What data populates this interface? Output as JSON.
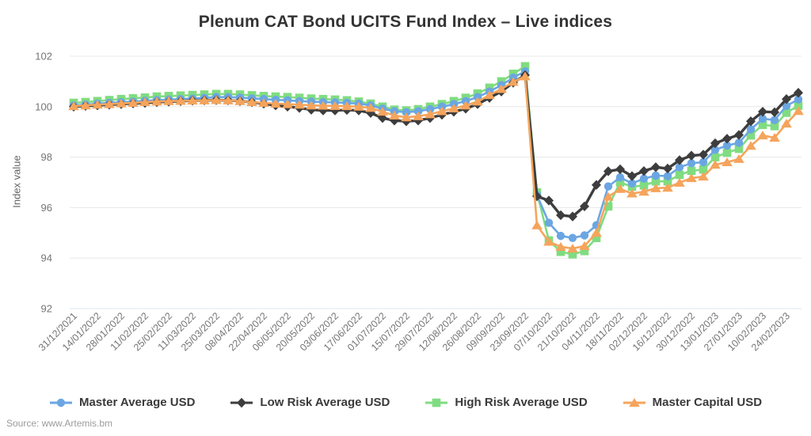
{
  "header": {
    "title": "Plenum CAT Bond UCITS Fund Index – Live indices"
  },
  "y_axis": {
    "label": "Index value"
  },
  "source": {
    "text": "Source: www.Artemis.bm"
  },
  "style": {
    "grid_color": "#e8e8e8",
    "baseline_color": "#d9e4f1",
    "tick_color": "#757575",
    "title_color": "#333333",
    "legend_text_color": "#3a3a3a"
  },
  "chart_data": {
    "type": "line",
    "title": "Plenum CAT Bond UCITS Fund Index – Live indices",
    "xlabel": "",
    "ylabel": "Index value",
    "ylim": [
      92,
      102
    ],
    "yticks": [
      102,
      100,
      98,
      96,
      94,
      92
    ],
    "grid": "horizontal",
    "legend_position": "bottom",
    "x_label_every": 2,
    "x": [
      "31/12/2021",
      "07/01/2022",
      "14/01/2022",
      "21/01/2022",
      "28/01/2022",
      "04/02/2022",
      "11/02/2022",
      "18/02/2022",
      "25/02/2022",
      "04/03/2022",
      "11/03/2022",
      "18/03/2022",
      "25/03/2022",
      "01/04/2022",
      "08/04/2022",
      "15/04/2022",
      "22/04/2022",
      "29/04/2022",
      "06/05/2022",
      "13/05/2022",
      "20/05/2022",
      "27/05/2022",
      "03/06/2022",
      "10/06/2022",
      "17/06/2022",
      "24/06/2022",
      "01/07/2022",
      "08/07/2022",
      "15/07/2022",
      "22/07/2022",
      "29/07/2022",
      "05/08/2022",
      "12/08/2022",
      "19/08/2022",
      "26/08/2022",
      "02/09/2022",
      "09/09/2022",
      "16/09/2022",
      "23/09/2022",
      "30/09/2022",
      "07/10/2022",
      "14/10/2022",
      "21/10/2022",
      "28/10/2022",
      "04/11/2022",
      "11/11/2022",
      "18/11/2022",
      "25/11/2022",
      "02/12/2022",
      "09/12/2022",
      "16/12/2022",
      "23/12/2022",
      "30/12/2022",
      "06/01/2023",
      "13/01/2023",
      "20/01/2023",
      "27/01/2023",
      "03/02/2023",
      "10/02/2023",
      "17/02/2023",
      "24/02/2023",
      "03/03/2023"
    ],
    "series": [
      {
        "name": "Master Average USD",
        "color": "#6BA6E3",
        "marker": "circle",
        "values": [
          100.05,
          100.08,
          100.12,
          100.15,
          100.18,
          100.2,
          100.23,
          100.26,
          100.28,
          100.3,
          100.32,
          100.35,
          100.38,
          100.38,
          100.36,
          100.33,
          100.3,
          100.27,
          100.25,
          100.22,
          100.2,
          100.18,
          100.17,
          100.15,
          100.12,
          100.05,
          99.92,
          99.82,
          99.78,
          99.82,
          99.9,
          100.0,
          100.1,
          100.22,
          100.38,
          100.6,
          100.85,
          101.15,
          101.4,
          96.5,
          95.4,
          94.88,
          94.8,
          94.9,
          95.3,
          96.84,
          97.2,
          96.96,
          97.15,
          97.27,
          97.25,
          97.6,
          97.76,
          97.8,
          98.29,
          98.46,
          98.57,
          99.1,
          99.52,
          99.47,
          100.03,
          100.29
        ]
      },
      {
        "name": "Low Risk Average USD",
        "color": "#3D3D3D",
        "marker": "diamond",
        "values": [
          100.0,
          100.03,
          100.05,
          100.08,
          100.1,
          100.13,
          100.15,
          100.18,
          100.2,
          100.22,
          100.24,
          100.25,
          100.26,
          100.25,
          100.22,
          100.18,
          100.12,
          100.05,
          100.0,
          99.95,
          99.88,
          99.85,
          99.85,
          99.87,
          99.85,
          99.75,
          99.55,
          99.45,
          99.42,
          99.45,
          99.55,
          99.68,
          99.8,
          99.92,
          100.1,
          100.35,
          100.6,
          100.95,
          101.25,
          96.45,
          96.28,
          95.7,
          95.65,
          96.05,
          96.9,
          97.44,
          97.52,
          97.25,
          97.45,
          97.6,
          97.55,
          97.88,
          98.06,
          98.1,
          98.55,
          98.73,
          98.88,
          99.42,
          99.8,
          99.78,
          100.3,
          100.55
        ]
      },
      {
        "name": "High Risk Average USD",
        "color": "#80DC80",
        "marker": "square",
        "values": [
          100.15,
          100.18,
          100.22,
          100.26,
          100.3,
          100.33,
          100.36,
          100.4,
          100.42,
          100.44,
          100.46,
          100.48,
          100.5,
          100.5,
          100.48,
          100.45,
          100.42,
          100.4,
          100.38,
          100.35,
          100.32,
          100.3,
          100.28,
          100.25,
          100.2,
          100.12,
          100.0,
          99.88,
          99.85,
          99.9,
          100.0,
          100.1,
          100.22,
          100.35,
          100.52,
          100.75,
          101.0,
          101.3,
          101.6,
          96.6,
          94.7,
          94.25,
          94.15,
          94.28,
          94.8,
          96.05,
          97.0,
          96.83,
          96.88,
          97.04,
          97.04,
          97.3,
          97.46,
          97.51,
          98.0,
          98.18,
          98.33,
          98.86,
          99.28,
          99.23,
          99.76,
          100.04
        ]
      },
      {
        "name": "Master Capital USD",
        "color": "#F5A45C",
        "marker": "triangle",
        "values": [
          100.02,
          100.05,
          100.08,
          100.1,
          100.13,
          100.15,
          100.18,
          100.2,
          100.22,
          100.23,
          100.24,
          100.25,
          100.26,
          100.25,
          100.22,
          100.18,
          100.15,
          100.12,
          100.1,
          100.08,
          100.05,
          100.04,
          100.03,
          100.02,
          100.0,
          99.95,
          99.8,
          99.65,
          99.58,
          99.62,
          99.7,
          99.82,
          99.93,
          100.05,
          100.2,
          100.46,
          100.7,
          100.98,
          101.2,
          95.3,
          94.65,
          94.45,
          94.38,
          94.48,
          95.0,
          96.43,
          96.74,
          96.56,
          96.63,
          96.77,
          96.79,
          96.99,
          97.17,
          97.23,
          97.7,
          97.8,
          97.93,
          98.45,
          98.86,
          98.77,
          99.33,
          99.83
        ]
      }
    ],
    "draw_order": [
      2,
      0,
      1,
      3
    ]
  }
}
